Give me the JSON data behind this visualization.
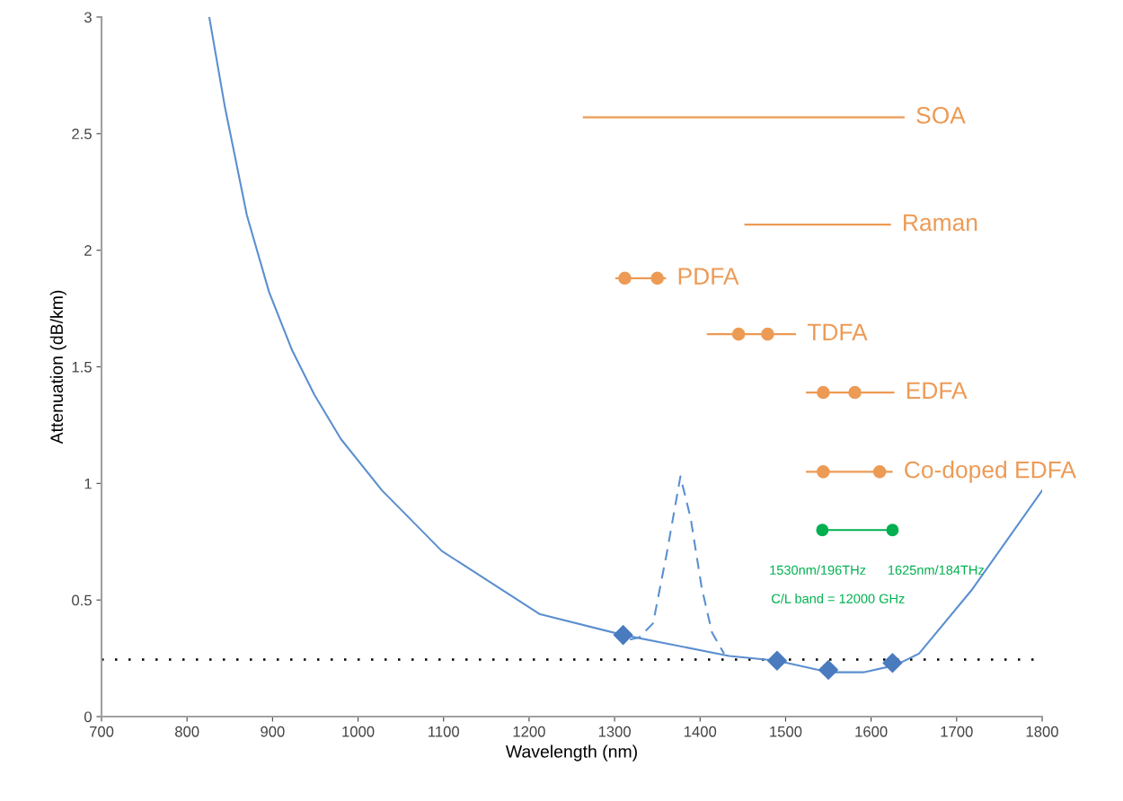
{
  "chart_data": {
    "type": "line",
    "xlabel": "Wavelength (nm)",
    "ylabel": "Attenuation (dB/km)",
    "xlim": [
      700,
      1800
    ],
    "ylim": [
      0,
      3
    ],
    "xticks": [
      700,
      800,
      900,
      1000,
      1100,
      1200,
      1300,
      1400,
      1500,
      1600,
      1700,
      1800
    ],
    "yticks": [
      0,
      0.5,
      1,
      1.5,
      2,
      2.5,
      3
    ],
    "grid": false,
    "legend": false,
    "marker": "none",
    "line_style": "solid",
    "series": [
      {
        "color": "#5b8fd0",
        "x": [
          826,
          844,
          870,
          896,
          923,
          949,
          980,
          1028,
          1098,
          1212,
          1310,
          1434,
          1490,
          1551,
          1591,
          1628,
          1656,
          1717,
          1800
        ],
        "values": [
          3.0,
          2.62,
          2.15,
          1.82,
          1.57,
          1.38,
          1.19,
          0.97,
          0.71,
          0.44,
          0.35,
          0.26,
          0.24,
          0.19,
          0.19,
          0.22,
          0.27,
          0.54,
          0.97
        ]
      },
      {
        "color": "#5b8fd0",
        "line_style": "dashed",
        "x": [
          1318,
          1329,
          1345,
          1361,
          1377,
          1389,
          1402,
          1414,
          1428
        ],
        "values": [
          0.33,
          0.34,
          0.4,
          0.7,
          1.03,
          0.85,
          0.55,
          0.36,
          0.27
        ]
      },
      {
        "type": "scatter",
        "color": "#4a7bbf",
        "marker": "diamond",
        "x": [
          1310,
          1490,
          1550,
          1625
        ],
        "values": [
          0.35,
          0.24,
          0.2,
          0.23
        ]
      },
      {
        "name": "SOA",
        "color": "#ed9a55",
        "x": [
          1264,
          1638
        ],
        "values": [
          2.57,
          2.57
        ]
      },
      {
        "name": "Raman",
        "color": "#ed9a55",
        "x": [
          1453,
          1622
        ],
        "values": [
          2.11,
          2.11
        ]
      },
      {
        "name": "PDFA",
        "color": "#ed9a55",
        "x": [
          1302,
          1359
        ],
        "values": [
          1.88,
          1.88
        ]
      },
      {
        "type": "scatter",
        "color": "#ed9a55",
        "marker": "circle",
        "x": [
          1312,
          1350
        ],
        "values": [
          1.88,
          1.88
        ]
      },
      {
        "name": "TDFA",
        "color": "#ed9a55",
        "x": [
          1409,
          1511
        ],
        "values": [
          1.64,
          1.64
        ]
      },
      {
        "type": "scatter",
        "color": "#ed9a55",
        "marker": "circle",
        "x": [
          1445,
          1479
        ],
        "values": [
          1.64,
          1.64
        ]
      },
      {
        "name": "EDFA",
        "color": "#ed9a55",
        "x": [
          1525,
          1626
        ],
        "values": [
          1.39,
          1.39
        ]
      },
      {
        "type": "scatter",
        "color": "#ed9a55",
        "marker": "circle",
        "x": [
          1544,
          1581
        ],
        "values": [
          1.39,
          1.39
        ]
      },
      {
        "name": "Co-doped EDFA",
        "color": "#ed9a55",
        "x": [
          1525,
          1624
        ],
        "values": [
          1.05,
          1.05
        ]
      },
      {
        "type": "scatter",
        "color": "#ed9a55",
        "marker": "circle",
        "x": [
          1544,
          1610
        ],
        "values": [
          1.05,
          1.05
        ]
      },
      {
        "color": "#00b050",
        "marker": "circle",
        "x": [
          1543,
          1625
        ],
        "values": [
          0.8,
          0.8
        ]
      }
    ],
    "ref_lines": [
      {
        "axis": "y",
        "value": 0.245,
        "color": "#000000",
        "line_style": "dotted"
      }
    ],
    "annotations": [
      {
        "text": "1530nm/196THz",
        "x": 1543,
        "y": 0.8
      },
      {
        "text": "1625nm/184THz",
        "x": 1625,
        "y": 0.8
      },
      "C/L band = 12000 GHz"
    ]
  }
}
